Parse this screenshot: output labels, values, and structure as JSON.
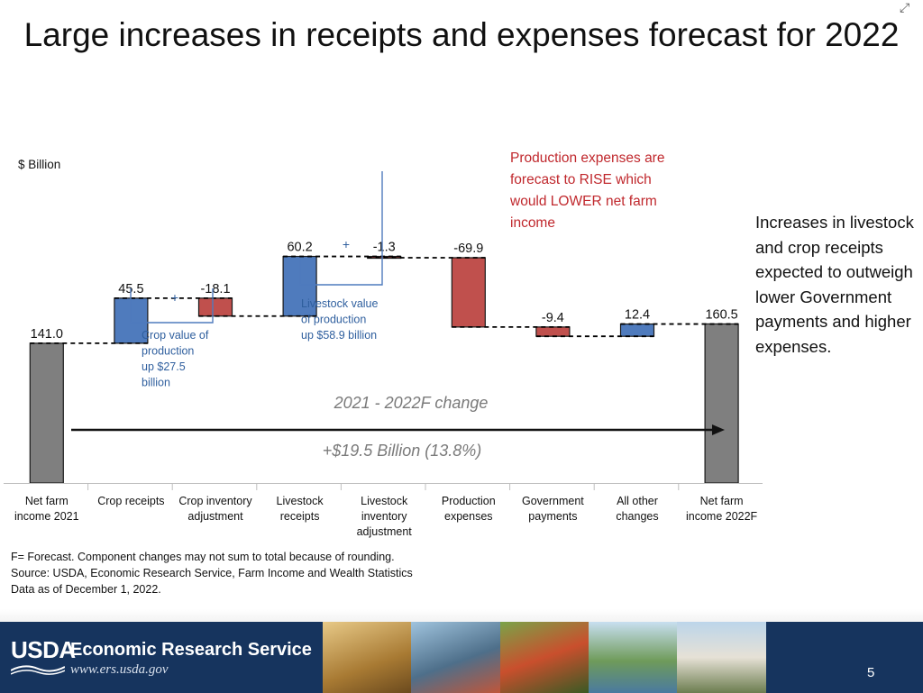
{
  "slide": {
    "title": "Large increases in receipts and expenses forecast for 2022",
    "right_note": "Increases in livestock and crop receipts expected to outweigh lower Government payments and higher expenses.",
    "footnotes": [
      "F= Forecast.  Component changes may not sum to total because of rounding.",
      "Source: USDA, Economic Research Service, Farm Income and Wealth Statistics",
      "Data as of December 1, 2022."
    ],
    "page_number": "5",
    "footer": {
      "logo_text": "USDA",
      "agency": "Economic Research Service",
      "url": "www.ers.usda.gov"
    }
  },
  "chart_data": {
    "type": "bar",
    "subtype": "waterfall",
    "ylabel": "$ Billion",
    "categories": [
      [
        "Net farm",
        "income 2021"
      ],
      [
        "Crop receipts"
      ],
      [
        "Crop inventory",
        "adjustment"
      ],
      [
        "Livestock",
        "receipts"
      ],
      [
        "Livestock",
        "inventory",
        "adjustment"
      ],
      [
        "Production",
        "expenses"
      ],
      [
        "Government",
        "payments"
      ],
      [
        "All other",
        "changes"
      ],
      [
        "Net farm",
        "income 2022F"
      ]
    ],
    "values": [
      141.0,
      45.5,
      -18.1,
      60.2,
      -1.3,
      -69.9,
      -9.4,
      12.4,
      160.5
    ],
    "value_labels": [
      "141.0",
      "45.5",
      "-18.1",
      "60.2",
      "-1.3",
      "-69.9",
      "-9.4",
      "12.4",
      "160.5"
    ],
    "kinds": [
      "total",
      "up",
      "down",
      "up",
      "down",
      "down",
      "down",
      "up",
      "total"
    ],
    "colors": {
      "total": "#7f7f7f",
      "up": "#4f7bbd",
      "down": "#c0504d",
      "connector": "#000000"
    },
    "annotations": {
      "crop_brace_plus": "+",
      "crop_value": [
        "Crop value of",
        "production",
        "up $27.5",
        "billion"
      ],
      "livestock_brace_plus": "+",
      "livestock_value": [
        "Livestock value",
        "of production",
        "up $58.9 billion"
      ],
      "expenses_note": [
        "Production expenses are",
        "forecast to RISE which",
        "would LOWER net farm",
        "income"
      ],
      "change_label": "2021 - 2022F change",
      "change_value": "+$19.5 Billion (13.8%)"
    },
    "annotation_colors": {
      "brace": "#4f7bbd",
      "brace_text": "#2f5f9e",
      "expenses_note": "#c0282d",
      "change_text": "#7a7a7a"
    }
  }
}
